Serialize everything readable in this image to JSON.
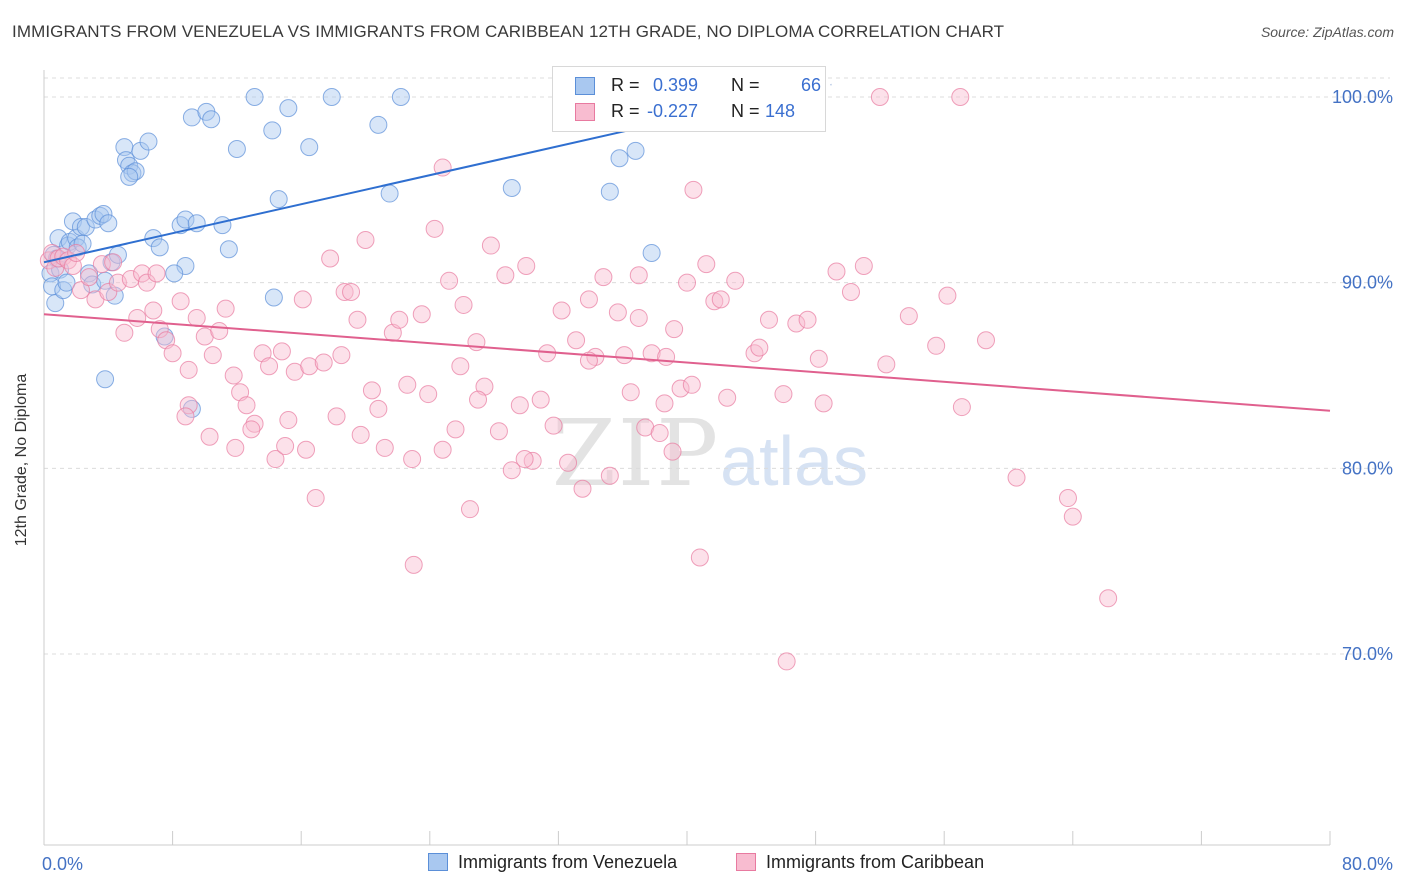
{
  "title": "IMMIGRANTS FROM VENEZUELA VS IMMIGRANTS FROM CARIBBEAN 12TH GRADE, NO DIPLOMA CORRELATION CHART",
  "source": "Source: ZipAtlas.com",
  "watermark": {
    "zip": "ZIP",
    "atlas": "atlas"
  },
  "legend": {
    "r_label": "R =",
    "n_label": "N =",
    "rows": [
      {
        "r": "0.399",
        "n": "66"
      },
      {
        "r": "-0.227",
        "n": "148"
      }
    ]
  },
  "bottom_legend": [
    "Immigrants from Venezuela",
    "Immigrants from Caribbean"
  ],
  "colors": {
    "venezuela_fill": "#a9c8f0",
    "venezuela_stroke": "#5b8fd8",
    "venezuela_line": "#2f6fd0",
    "caribbean_fill": "#f8bcd0",
    "caribbean_stroke": "#e87aa0",
    "caribbean_line": "#e0608e",
    "tick_text": "#4472c4",
    "grid": "#dcdcdc"
  },
  "chart_data": {
    "type": "scatter",
    "xlabel": "",
    "ylabel": "12th Grade, No Diploma",
    "xlim": [
      0,
      80
    ],
    "ylim": [
      60,
      100
    ],
    "x_tick_labels": [
      "0.0%",
      "80.0%"
    ],
    "y_ticks": [
      70,
      80,
      90,
      100
    ],
    "y_tick_labels": [
      "70.0%",
      "80.0%",
      "90.0%",
      "100.0%"
    ],
    "grid": "horizontal dashed",
    "legend_position": "top-center",
    "series": [
      {
        "name": "Immigrants from Venezuela",
        "r": 0.399,
        "n": 66,
        "trend": [
          [
            0,
            91.1
          ],
          [
            38.9,
            98.7
          ]
        ],
        "points": [
          [
            0.4,
            90.5
          ],
          [
            0.5,
            89.8
          ],
          [
            0.6,
            91.5
          ],
          [
            0.7,
            88.9
          ],
          [
            0.8,
            91.3
          ],
          [
            0.9,
            92.4
          ],
          [
            1.0,
            90.7
          ],
          [
            1.2,
            89.6
          ],
          [
            1.4,
            90.0
          ],
          [
            1.5,
            92.0
          ],
          [
            1.6,
            92.2
          ],
          [
            1.8,
            93.3
          ],
          [
            2.0,
            92.4
          ],
          [
            2.1,
            91.9
          ],
          [
            2.3,
            93.0
          ],
          [
            2.4,
            92.1
          ],
          [
            2.6,
            93.0
          ],
          [
            2.8,
            90.5
          ],
          [
            3.0,
            89.9
          ],
          [
            3.2,
            93.4
          ],
          [
            3.5,
            93.6
          ],
          [
            3.7,
            93.7
          ],
          [
            3.8,
            90.1
          ],
          [
            4.0,
            93.2
          ],
          [
            4.2,
            91.1
          ],
          [
            4.4,
            89.3
          ],
          [
            4.6,
            91.5
          ],
          [
            5.0,
            97.3
          ],
          [
            5.1,
            96.6
          ],
          [
            5.3,
            96.3
          ],
          [
            5.5,
            95.9
          ],
          [
            5.7,
            96.0
          ],
          [
            5.3,
            95.7
          ],
          [
            6.0,
            97.1
          ],
          [
            6.5,
            97.6
          ],
          [
            6.8,
            92.4
          ],
          [
            7.2,
            91.9
          ],
          [
            7.5,
            87.1
          ],
          [
            8.5,
            93.1
          ],
          [
            8.8,
            93.4
          ],
          [
            9.2,
            98.9
          ],
          [
            10.1,
            99.2
          ],
          [
            10.4,
            98.8
          ],
          [
            9.5,
            93.2
          ],
          [
            11.1,
            93.1
          ],
          [
            11.5,
            91.8
          ],
          [
            12.0,
            97.2
          ],
          [
            13.1,
            100.0
          ],
          [
            14.2,
            98.2
          ],
          [
            14.6,
            94.5
          ],
          [
            15.2,
            99.4
          ],
          [
            16.5,
            97.3
          ],
          [
            17.9,
            100.0
          ],
          [
            20.8,
            98.5
          ],
          [
            21.5,
            94.8
          ],
          [
            22.2,
            100.0
          ],
          [
            29.1,
            95.1
          ],
          [
            35.2,
            94.9
          ],
          [
            35.8,
            96.7
          ],
          [
            36.8,
            97.1
          ],
          [
            37.8,
            91.6
          ],
          [
            8.8,
            90.9
          ],
          [
            8.1,
            90.5
          ],
          [
            3.8,
            84.8
          ],
          [
            9.2,
            83.2
          ],
          [
            14.3,
            89.2
          ]
        ]
      },
      {
        "name": "Immigrants from Caribbean",
        "r": -0.227,
        "n": 148,
        "trend": [
          [
            0,
            88.3
          ],
          [
            80,
            83.1
          ]
        ],
        "points": [
          [
            0.3,
            91.2
          ],
          [
            0.5,
            91.6
          ],
          [
            0.7,
            90.8
          ],
          [
            0.9,
            91.3
          ],
          [
            1.2,
            91.4
          ],
          [
            1.5,
            91.2
          ],
          [
            1.8,
            90.9
          ],
          [
            2.0,
            91.6
          ],
          [
            2.3,
            89.6
          ],
          [
            2.8,
            90.3
          ],
          [
            3.2,
            89.1
          ],
          [
            3.6,
            91.0
          ],
          [
            4.0,
            89.5
          ],
          [
            4.3,
            91.1
          ],
          [
            4.6,
            90.0
          ],
          [
            5.0,
            87.3
          ],
          [
            5.4,
            90.2
          ],
          [
            5.8,
            88.1
          ],
          [
            6.1,
            90.5
          ],
          [
            6.4,
            90.0
          ],
          [
            6.8,
            88.5
          ],
          [
            7.2,
            87.5
          ],
          [
            7.6,
            86.9
          ],
          [
            8.0,
            86.2
          ],
          [
            8.5,
            89.0
          ],
          [
            9.0,
            85.3
          ],
          [
            9.5,
            88.1
          ],
          [
            10.0,
            87.1
          ],
          [
            10.5,
            86.1
          ],
          [
            10.9,
            87.4
          ],
          [
            11.3,
            88.6
          ],
          [
            11.8,
            85.0
          ],
          [
            12.2,
            84.1
          ],
          [
            12.6,
            83.4
          ],
          [
            13.1,
            82.4
          ],
          [
            13.6,
            86.2
          ],
          [
            14.0,
            85.5
          ],
          [
            14.4,
            80.5
          ],
          [
            14.8,
            86.3
          ],
          [
            15.2,
            82.6
          ],
          [
            15.6,
            85.2
          ],
          [
            16.1,
            89.1
          ],
          [
            16.5,
            85.5
          ],
          [
            16.9,
            78.4
          ],
          [
            17.4,
            85.7
          ],
          [
            17.8,
            91.3
          ],
          [
            18.2,
            82.8
          ],
          [
            18.7,
            89.5
          ],
          [
            19.1,
            89.5
          ],
          [
            19.5,
            88.0
          ],
          [
            20.0,
            92.3
          ],
          [
            20.4,
            84.2
          ],
          [
            20.8,
            83.2
          ],
          [
            21.2,
            81.1
          ],
          [
            21.7,
            87.3
          ],
          [
            22.1,
            88.0
          ],
          [
            22.6,
            84.5
          ],
          [
            23.0,
            74.8
          ],
          [
            23.5,
            88.3
          ],
          [
            23.9,
            84.0
          ],
          [
            24.3,
            92.9
          ],
          [
            24.8,
            81.0
          ],
          [
            25.2,
            90.1
          ],
          [
            25.6,
            82.1
          ],
          [
            26.1,
            88.8
          ],
          [
            26.5,
            77.8
          ],
          [
            26.9,
            86.8
          ],
          [
            27.4,
            84.4
          ],
          [
            27.8,
            92.0
          ],
          [
            28.3,
            82.0
          ],
          [
            28.7,
            90.4
          ],
          [
            29.1,
            79.9
          ],
          [
            29.6,
            83.4
          ],
          [
            30.0,
            90.9
          ],
          [
            30.4,
            80.4
          ],
          [
            30.9,
            83.7
          ],
          [
            31.3,
            86.2
          ],
          [
            31.7,
            82.3
          ],
          [
            32.2,
            88.5
          ],
          [
            32.6,
            80.3
          ],
          [
            33.1,
            86.9
          ],
          [
            33.5,
            78.9
          ],
          [
            33.9,
            89.1
          ],
          [
            34.3,
            86.0
          ],
          [
            34.8,
            90.3
          ],
          [
            35.2,
            79.6
          ],
          [
            35.7,
            88.4
          ],
          [
            36.1,
            86.1
          ],
          [
            36.5,
            84.1
          ],
          [
            37.0,
            90.4
          ],
          [
            37.4,
            82.2
          ],
          [
            37.8,
            86.2
          ],
          [
            38.3,
            81.9
          ],
          [
            38.7,
            86.0
          ],
          [
            39.1,
            80.9
          ],
          [
            39.6,
            84.3
          ],
          [
            40.0,
            90.0
          ],
          [
            40.4,
            95.0
          ],
          [
            40.8,
            75.2
          ],
          [
            41.2,
            91.0
          ],
          [
            41.7,
            89.0
          ],
          [
            42.1,
            89.1
          ],
          [
            43.0,
            90.1
          ],
          [
            44.2,
            86.2
          ],
          [
            45.1,
            88.0
          ],
          [
            46.2,
            69.6
          ],
          [
            46.8,
            87.8
          ],
          [
            47.5,
            88.0
          ],
          [
            48.2,
            85.9
          ],
          [
            49.3,
            90.6
          ],
          [
            50.2,
            89.5
          ],
          [
            51.0,
            90.9
          ],
          [
            52.4,
            85.6
          ],
          [
            53.8,
            88.2
          ],
          [
            55.5,
            86.6
          ],
          [
            56.2,
            89.3
          ],
          [
            57.1,
            83.3
          ],
          [
            58.6,
            86.9
          ],
          [
            60.5,
            79.5
          ],
          [
            63.7,
            78.4
          ],
          [
            64.0,
            77.4
          ],
          [
            66.2,
            73.0
          ],
          [
            52.0,
            100.0
          ],
          [
            57.0,
            100.0
          ],
          [
            24.8,
            96.2
          ],
          [
            7.0,
            90.5
          ],
          [
            9.0,
            83.4
          ],
          [
            10.3,
            81.7
          ],
          [
            11.9,
            81.1
          ],
          [
            12.9,
            82.1
          ],
          [
            16.3,
            81.0
          ],
          [
            19.7,
            81.8
          ],
          [
            25.9,
            85.5
          ],
          [
            29.9,
            80.5
          ],
          [
            33.9,
            85.8
          ],
          [
            37.0,
            88.1
          ],
          [
            38.6,
            83.5
          ],
          [
            39.2,
            87.5
          ],
          [
            40.3,
            84.5
          ],
          [
            42.5,
            83.8
          ],
          [
            44.5,
            86.5
          ],
          [
            46.0,
            84.0
          ],
          [
            48.5,
            83.5
          ],
          [
            18.5,
            86.1
          ],
          [
            8.8,
            82.8
          ],
          [
            15.0,
            81.2
          ],
          [
            22.9,
            80.5
          ],
          [
            27.0,
            83.7
          ]
        ]
      }
    ]
  }
}
